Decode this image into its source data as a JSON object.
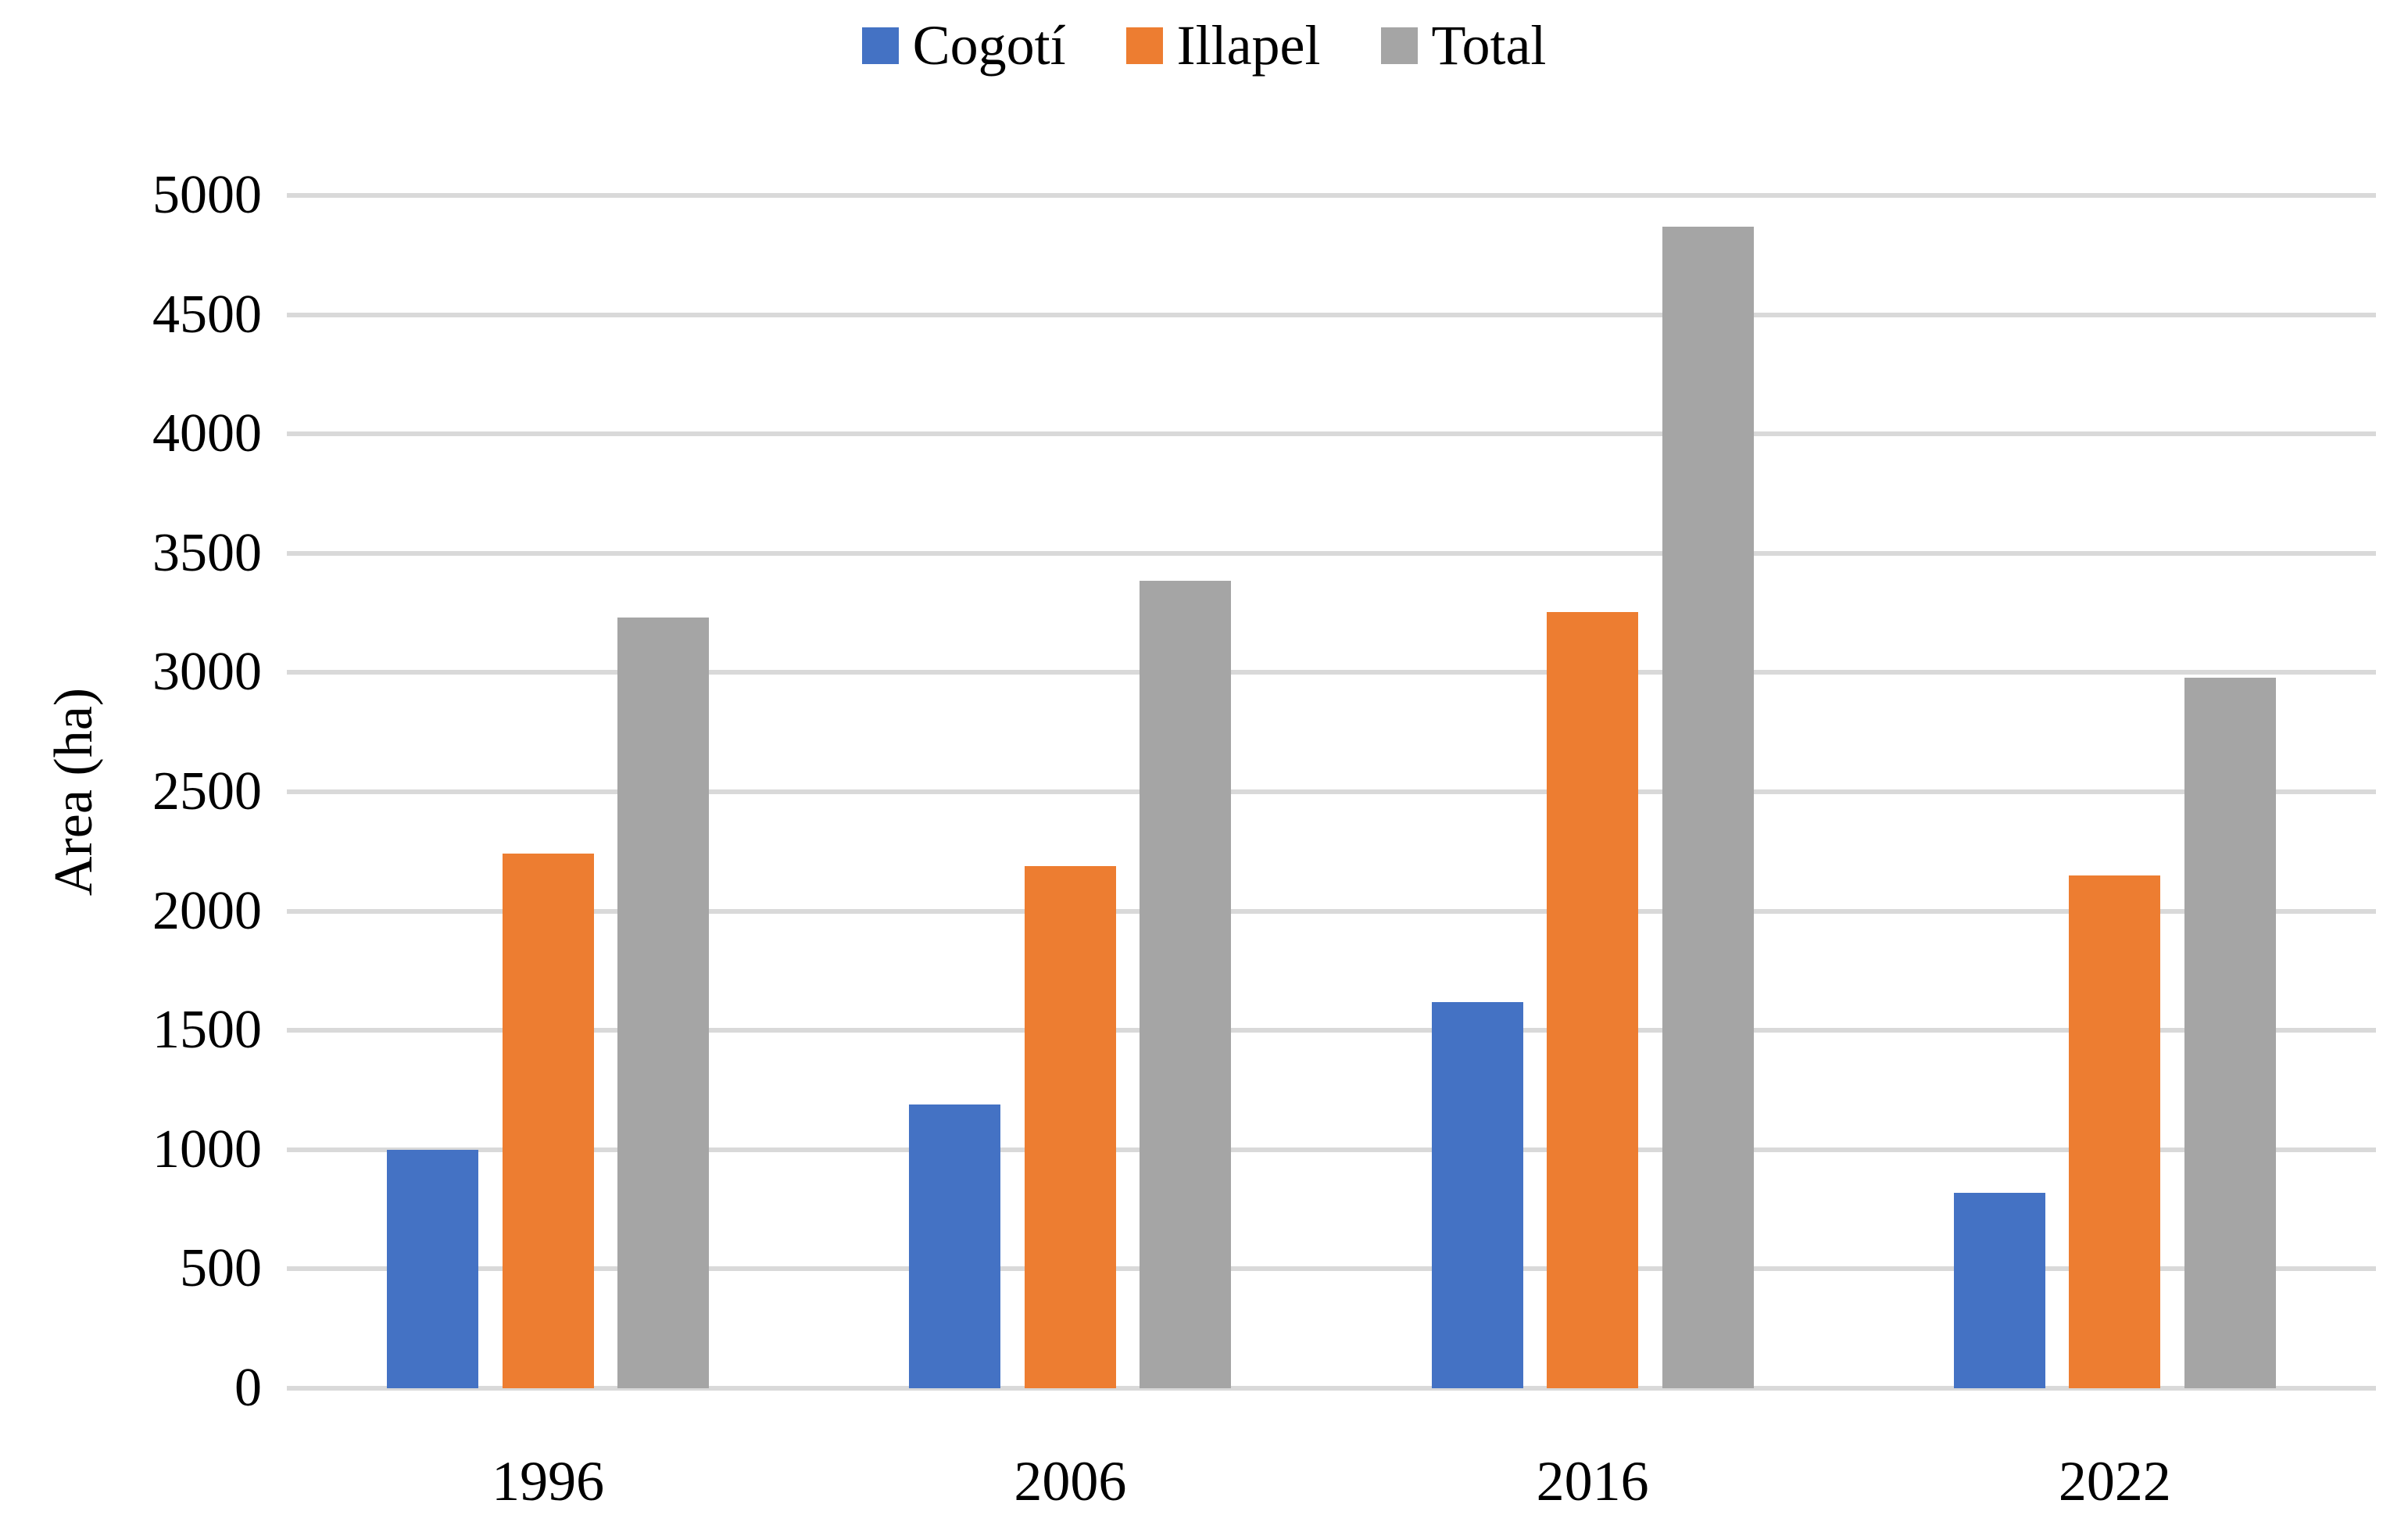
{
  "figure": {
    "background": "#ffffff",
    "text_color": "#000000"
  },
  "legend": {
    "position": "top-center",
    "items": [
      {
        "label": "Cogotí",
        "color": "#4472C4"
      },
      {
        "label": "Illapel",
        "color": "#ED7D31"
      },
      {
        "label": "Total",
        "color": "#A5A5A5"
      }
    ]
  },
  "chart_data": {
    "type": "bar",
    "title": "",
    "xlabel": "",
    "ylabel": "Area (ha)",
    "categories": [
      "1996",
      "2006",
      "2016",
      "2022"
    ],
    "series": [
      {
        "name": "Cogotí",
        "color": "#4472C4",
        "values": [
          1000,
          1190,
          1620,
          820
        ]
      },
      {
        "name": "Illapel",
        "color": "#ED7D31",
        "values": [
          2240,
          2190,
          3255,
          2150
        ]
      },
      {
        "name": "Total",
        "color": "#A5A5A5",
        "values": [
          3230,
          3385,
          4870,
          2980
        ]
      }
    ],
    "ylim": [
      0,
      5000
    ],
    "ytick_step": 500,
    "yticks": [
      0,
      500,
      1000,
      1500,
      2000,
      2500,
      3000,
      3500,
      4000,
      4500,
      5000
    ],
    "grid": "horizontal",
    "gridline_color": "#d9d9d9",
    "legend_position": "top-center"
  }
}
